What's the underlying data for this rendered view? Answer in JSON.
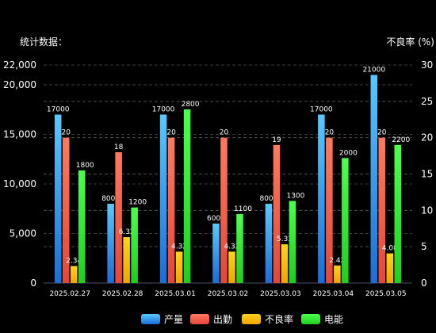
{
  "chart_data": {
    "type": "bar",
    "title": "",
    "ylabel_left": "统计数据：",
    "ylabel_right": "不良率 (%)",
    "categories": [
      "2025.02.27",
      "2025.02.28",
      "2025.03.01",
      "2025.03.02",
      "2025.03.03",
      "2025.03.04",
      "2025.03.05"
    ],
    "left_axis": {
      "ylim": [
        0,
        22000
      ],
      "ticks": [
        0,
        5000,
        10000,
        15000,
        20000,
        22000
      ],
      "tick_labels": [
        "0",
        "5,000",
        "10,000",
        "15,000",
        "20,000",
        "22,000"
      ]
    },
    "right_axis": {
      "ylim": [
        0,
        30
      ],
      "ticks": [
        0,
        5,
        10,
        15,
        20,
        25,
        30
      ],
      "tick_labels": [
        "0",
        "5",
        "10",
        "15",
        "20",
        "25",
        "30"
      ]
    },
    "grid": true,
    "legend_position": "bottom-center",
    "series": [
      {
        "name": "产量",
        "axis": "left",
        "color_top": "#59c8ff",
        "color_bottom": "#1a6dd6",
        "values": [
          17000,
          8000,
          17000,
          6000,
          8000,
          17000,
          21000
        ],
        "labels": [
          "17000",
          "8000",
          "17000",
          "6000",
          "8000",
          "17000",
          "21000"
        ]
      },
      {
        "name": "出勤",
        "axis": "right",
        "color_top": "#ff7a5c",
        "color_bottom": "#e5463a",
        "values": [
          20,
          18,
          20,
          20,
          19,
          20,
          20
        ],
        "labels": [
          "20",
          "18",
          "20",
          "20",
          "19",
          "20",
          "20"
        ]
      },
      {
        "name": "不良率",
        "axis": "right",
        "color_top": "#ffd21a",
        "color_bottom": "#f0a500",
        "values": [
          2.34,
          6.32,
          4.32,
          4.32,
          5.33,
          2.42,
          4.08
        ],
        "labels": [
          "2.34",
          "6.32",
          "4.32",
          "4.32",
          "5.33",
          "2.42",
          "4.08"
        ]
      },
      {
        "name": "电能",
        "axis": "right",
        "color_top": "#4cff4c",
        "color_bottom": "#1fcf1f",
        "values": [
          15.5,
          10.4,
          23.9,
          9.5,
          11.3,
          17.2,
          19.0
        ],
        "labels": [
          "1800",
          "1200",
          "2800",
          "1100",
          "1300",
          "2000",
          "2200"
        ]
      }
    ]
  }
}
